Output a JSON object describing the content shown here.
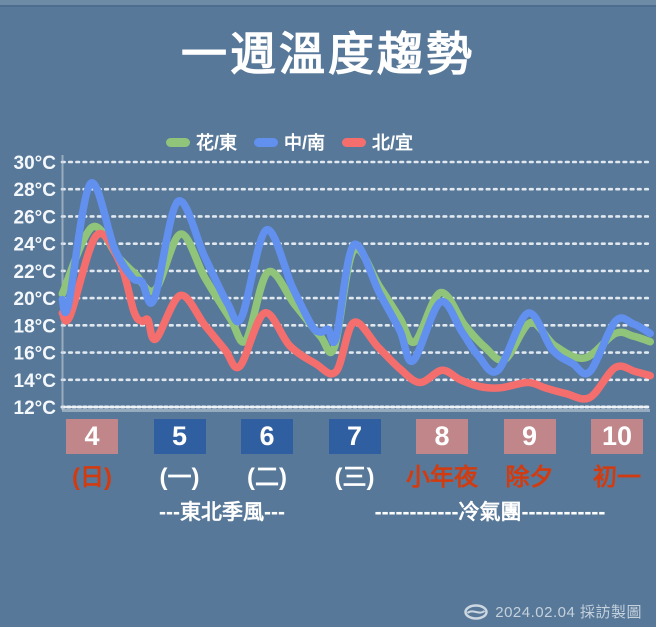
{
  "title": "一週溫度趨勢",
  "legend": {
    "items": [
      {
        "label": "花/東",
        "color": "#90c47a"
      },
      {
        "label": "中/南",
        "color": "#6190ee"
      },
      {
        "label": "北/宜",
        "color": "#f56e6e"
      }
    ]
  },
  "chart_data": {
    "type": "line",
    "title": "一週溫度趨勢",
    "ylabel": "°C",
    "ylim": [
      12,
      30
    ],
    "yticks": [
      30,
      28,
      26,
      24,
      22,
      20,
      18,
      16,
      14,
      12
    ],
    "ytick_suffix": "°C",
    "grid": "horizontal-dotted-white",
    "legend_position": "top",
    "x_unit": "day of month (Feb 2024), fractional values = time of day",
    "xlim": [
      3.66,
      10.38
    ],
    "categories": [
      "4",
      "5",
      "6",
      "7",
      "8",
      "9",
      "10"
    ],
    "series": [
      {
        "name": "花/東",
        "color": "#90c47a",
        "z": 1,
        "points": [
          [
            3.66,
            20.3
          ],
          [
            4.0,
            25.2
          ],
          [
            4.3,
            23.0
          ],
          [
            4.49,
            21.8
          ],
          [
            4.72,
            20.6
          ],
          [
            5.01,
            24.7
          ],
          [
            5.29,
            21.5
          ],
          [
            5.58,
            18.5
          ],
          [
            5.76,
            16.9
          ],
          [
            6.01,
            21.9
          ],
          [
            6.32,
            19.5
          ],
          [
            6.61,
            17.2
          ],
          [
            6.77,
            16.4
          ],
          [
            6.99,
            23.5
          ],
          [
            7.29,
            20.8
          ],
          [
            7.52,
            18.5
          ],
          [
            7.69,
            16.8
          ],
          [
            7.98,
            20.4
          ],
          [
            8.26,
            18.0
          ],
          [
            8.49,
            16.4
          ],
          [
            8.72,
            15.5
          ],
          [
            9.01,
            18.2
          ],
          [
            9.29,
            16.5
          ],
          [
            9.63,
            15.6
          ],
          [
            9.98,
            17.4
          ],
          [
            10.19,
            17.2
          ],
          [
            10.38,
            16.8
          ]
        ]
      },
      {
        "name": "北/宜",
        "color": "#f56e6e",
        "z": 2,
        "points": [
          [
            3.66,
            18.9
          ],
          [
            3.75,
            18.7
          ],
          [
            4.05,
            24.6
          ],
          [
            4.32,
            22.6
          ],
          [
            4.48,
            19.0
          ],
          [
            4.57,
            18.3
          ],
          [
            4.64,
            18.4
          ],
          [
            4.73,
            17.0
          ],
          [
            5.01,
            20.2
          ],
          [
            5.29,
            18.0
          ],
          [
            5.52,
            16.2
          ],
          [
            5.69,
            15.0
          ],
          [
            5.97,
            18.9
          ],
          [
            6.26,
            16.5
          ],
          [
            6.55,
            15.2
          ],
          [
            6.79,
            14.6
          ],
          [
            6.99,
            18.2
          ],
          [
            7.27,
            16.4
          ],
          [
            7.52,
            14.8
          ],
          [
            7.75,
            13.8
          ],
          [
            8.0,
            14.7
          ],
          [
            8.21,
            14.0
          ],
          [
            8.43,
            13.5
          ],
          [
            8.66,
            13.4
          ],
          [
            8.98,
            13.8
          ],
          [
            9.18,
            13.4
          ],
          [
            9.41,
            13.0
          ],
          [
            9.69,
            12.7
          ],
          [
            9.98,
            14.9
          ],
          [
            10.21,
            14.6
          ],
          [
            10.38,
            14.3
          ]
        ]
      },
      {
        "name": "中/南",
        "color": "#6190ee",
        "z": 3,
        "points": [
          [
            3.66,
            19.9
          ],
          [
            3.73,
            19.5
          ],
          [
            3.98,
            28.4
          ],
          [
            4.26,
            23.6
          ],
          [
            4.46,
            21.5
          ],
          [
            4.57,
            21.2
          ],
          [
            4.71,
            19.9
          ],
          [
            4.98,
            27.1
          ],
          [
            5.29,
            23.0
          ],
          [
            5.55,
            19.6
          ],
          [
            5.71,
            18.6
          ],
          [
            5.99,
            25.0
          ],
          [
            6.29,
            20.8
          ],
          [
            6.51,
            18.0
          ],
          [
            6.61,
            17.5
          ],
          [
            6.7,
            17.7
          ],
          [
            6.79,
            17.1
          ],
          [
            6.99,
            23.9
          ],
          [
            7.29,
            20.3
          ],
          [
            7.52,
            17.6
          ],
          [
            7.67,
            15.4
          ],
          [
            7.98,
            19.7
          ],
          [
            8.23,
            17.5
          ],
          [
            8.41,
            15.8
          ],
          [
            8.64,
            14.7
          ],
          [
            8.98,
            18.9
          ],
          [
            9.26,
            16.2
          ],
          [
            9.49,
            15.2
          ],
          [
            9.69,
            14.6
          ],
          [
            9.98,
            18.3
          ],
          [
            10.19,
            18.1
          ],
          [
            10.38,
            17.4
          ]
        ]
      }
    ]
  },
  "xaxis": {
    "days": [
      {
        "num": "4",
        "weekday": "(日)",
        "box_color": "#c18689",
        "weekday_color": "#d23b10"
      },
      {
        "num": "5",
        "weekday": "(一)",
        "box_color": "#2f5fa0",
        "weekday_color": "#ffffff"
      },
      {
        "num": "6",
        "weekday": "(二)",
        "box_color": "#2f5fa0",
        "weekday_color": "#ffffff"
      },
      {
        "num": "7",
        "weekday": "(三)",
        "box_color": "#2f5fa0",
        "weekday_color": "#ffffff"
      },
      {
        "num": "8",
        "weekday": "小年夜",
        "box_color": "#c18689",
        "weekday_color": "#d23b10"
      },
      {
        "num": "9",
        "weekday": "除夕",
        "box_color": "#c18689",
        "weekday_color": "#d23b10"
      },
      {
        "num": "10",
        "weekday": "初一",
        "box_color": "#c18689",
        "weekday_color": "#d23b10"
      }
    ]
  },
  "annotations": {
    "northeast_monsoon": "---東北季風---",
    "cold_air_mass": "------------冷氣團------------"
  },
  "credit": {
    "text": "2024.02.04 採訪製圖"
  }
}
